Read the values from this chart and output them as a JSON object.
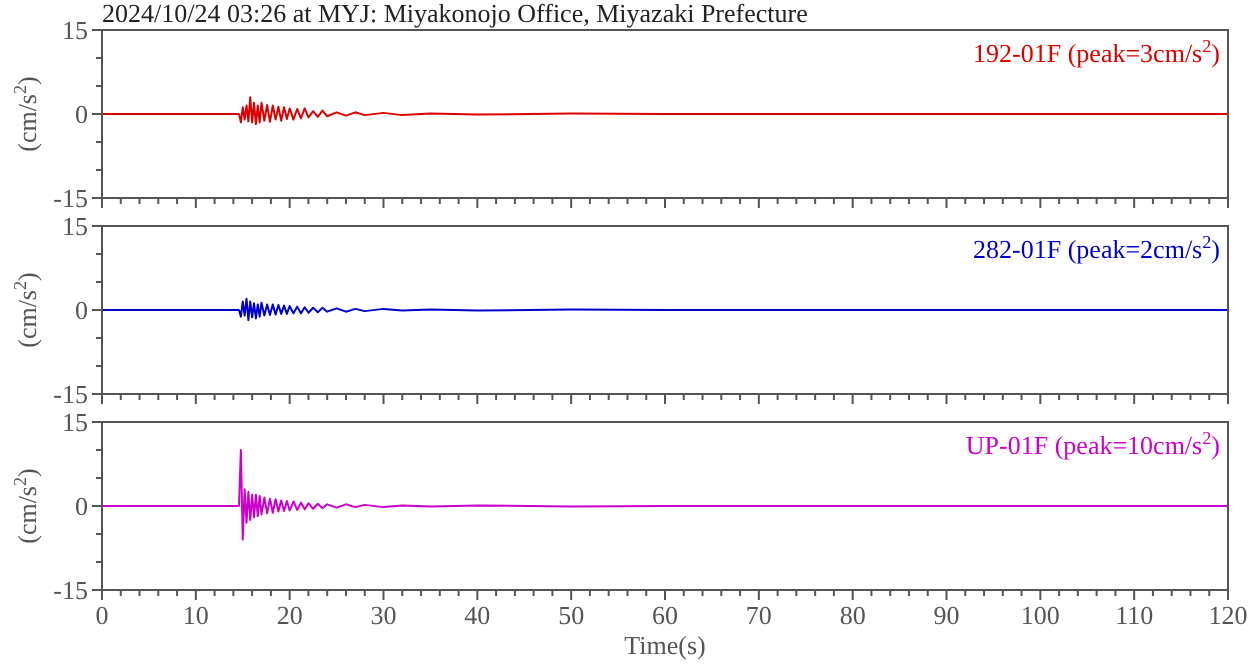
{
  "chart_data": [
    {
      "type": "line",
      "title": "2024/10/24 03:26 at MYJ: Miyakonojo Office, Miyazaki Prefecture",
      "ylabel": "(cm/s$^{2}$)",
      "annotations": [
        "192-01F (peak=3cm/s$^{2}$)"
      ],
      "tick_labels": "y",
      "grid": false,
      "xlim": [
        0,
        120
      ],
      "ylim": [
        -15,
        15
      ],
      "xticks": [
        0,
        10,
        20,
        30,
        40,
        50,
        60,
        70,
        80,
        90,
        100,
        110,
        120,
        {
          "value": 2,
          "label": null
        },
        {
          "value": 4,
          "label": null
        },
        {
          "value": 6,
          "label": null
        },
        {
          "value": 8,
          "label": null
        },
        {
          "value": 12,
          "label": null
        },
        {
          "value": 14,
          "label": null
        },
        {
          "value": 16,
          "label": null
        },
        {
          "value": 18,
          "label": null
        },
        {
          "value": 22,
          "label": null
        },
        {
          "value": 24,
          "label": null
        },
        {
          "value": 26,
          "label": null
        },
        {
          "value": 28,
          "label": null
        },
        {
          "value": 32,
          "label": null
        },
        {
          "value": 34,
          "label": null
        },
        {
          "value": 36,
          "label": null
        },
        {
          "value": 38,
          "label": null
        },
        {
          "value": 42,
          "label": null
        },
        {
          "value": 44,
          "label": null
        },
        {
          "value": 46,
          "label": null
        },
        {
          "value": 48,
          "label": null
        },
        {
          "value": 52,
          "label": null
        },
        {
          "value": 54,
          "label": null
        },
        {
          "value": 56,
          "label": null
        },
        {
          "value": 58,
          "label": null
        },
        {
          "value": 62,
          "label": null
        },
        {
          "value": 64,
          "label": null
        },
        {
          "value": 66,
          "label": null
        },
        {
          "value": 68,
          "label": null
        },
        {
          "value": 72,
          "label": null
        },
        {
          "value": 74,
          "label": null
        },
        {
          "value": 76,
          "label": null
        },
        {
          "value": 78,
          "label": null
        },
        {
          "value": 82,
          "label": null
        },
        {
          "value": 84,
          "label": null
        },
        {
          "value": 86,
          "label": null
        },
        {
          "value": 88,
          "label": null
        },
        {
          "value": 92,
          "label": null
        },
        {
          "value": 94,
          "label": null
        },
        {
          "value": 96,
          "label": null
        },
        {
          "value": 98,
          "label": null
        },
        {
          "value": 102,
          "label": null
        },
        {
          "value": 104,
          "label": null
        },
        {
          "value": 106,
          "label": null
        },
        {
          "value": 108,
          "label": null
        },
        {
          "value": 112,
          "label": null
        },
        {
          "value": 114,
          "label": null
        },
        {
          "value": 116,
          "label": null
        },
        {
          "value": 118,
          "label": null
        }
      ],
      "yticks": [
        -15,
        {
          "value": -10,
          "label": null
        },
        {
          "value": -5,
          "label": null
        },
        0,
        {
          "value": 5,
          "label": null
        },
        {
          "value": 10,
          "label": null
        },
        15
      ],
      "x": [
        0,
        14.6,
        14.8,
        15.0,
        15.2,
        15.4,
        15.6,
        15.8,
        16.0,
        16.2,
        16.4,
        16.6,
        16.8,
        17.0,
        17.3,
        17.6,
        17.9,
        18.2,
        18.5,
        18.8,
        19.1,
        19.4,
        19.7,
        20.0,
        20.4,
        20.8,
        21.2,
        21.6,
        22.0,
        22.5,
        23.0,
        23.5,
        24.0,
        25,
        26,
        27,
        28,
        30,
        32,
        35,
        40,
        50,
        60,
        120
      ],
      "series": [
        {
          "color": "#dd0000",
          "values": [
            0,
            0,
            -1.5,
            1.2,
            -1.0,
            1.5,
            -1.3,
            3,
            -1.5,
            2,
            -1.8,
            1.5,
            -1.5,
            2,
            -1.2,
            1.6,
            -1.4,
            1.5,
            -1.0,
            1.3,
            -1.2,
            1.2,
            -0.9,
            1.0,
            -1.0,
            0.9,
            -0.8,
            1.0,
            -0.6,
            0.5,
            -0.5,
            0.6,
            -0.4,
            0.3,
            -0.3,
            0.3,
            -0.2,
            0.2,
            -0.2,
            0.1,
            -0.1,
            0.1,
            0,
            0
          ]
        }
      ]
    },
    {
      "type": "line",
      "ylabel": "(cm/s$^{2}$)",
      "annotations": [
        "282-01F (peak=2cm/s$^{2}$)"
      ],
      "tick_labels": "y",
      "grid": false,
      "xlim": [
        0,
        120
      ],
      "ylim": [
        -15,
        15
      ],
      "xticks": [
        0,
        10,
        20,
        30,
        40,
        50,
        60,
        70,
        80,
        90,
        100,
        110,
        120,
        {
          "value": 2,
          "label": null
        },
        {
          "value": 4,
          "label": null
        },
        {
          "value": 6,
          "label": null
        },
        {
          "value": 8,
          "label": null
        },
        {
          "value": 12,
          "label": null
        },
        {
          "value": 14,
          "label": null
        },
        {
          "value": 16,
          "label": null
        },
        {
          "value": 18,
          "label": null
        },
        {
          "value": 22,
          "label": null
        },
        {
          "value": 24,
          "label": null
        },
        {
          "value": 26,
          "label": null
        },
        {
          "value": 28,
          "label": null
        },
        {
          "value": 32,
          "label": null
        },
        {
          "value": 34,
          "label": null
        },
        {
          "value": 36,
          "label": null
        },
        {
          "value": 38,
          "label": null
        },
        {
          "value": 42,
          "label": null
        },
        {
          "value": 44,
          "label": null
        },
        {
          "value": 46,
          "label": null
        },
        {
          "value": 48,
          "label": null
        },
        {
          "value": 52,
          "label": null
        },
        {
          "value": 54,
          "label": null
        },
        {
          "value": 56,
          "label": null
        },
        {
          "value": 58,
          "label": null
        },
        {
          "value": 62,
          "label": null
        },
        {
          "value": 64,
          "label": null
        },
        {
          "value": 66,
          "label": null
        },
        {
          "value": 68,
          "label": null
        },
        {
          "value": 72,
          "label": null
        },
        {
          "value": 74,
          "label": null
        },
        {
          "value": 76,
          "label": null
        },
        {
          "value": 78,
          "label": null
        },
        {
          "value": 82,
          "label": null
        },
        {
          "value": 84,
          "label": null
        },
        {
          "value": 86,
          "label": null
        },
        {
          "value": 88,
          "label": null
        },
        {
          "value": 92,
          "label": null
        },
        {
          "value": 94,
          "label": null
        },
        {
          "value": 96,
          "label": null
        },
        {
          "value": 98,
          "label": null
        },
        {
          "value": 102,
          "label": null
        },
        {
          "value": 104,
          "label": null
        },
        {
          "value": 106,
          "label": null
        },
        {
          "value": 108,
          "label": null
        },
        {
          "value": 112,
          "label": null
        },
        {
          "value": 114,
          "label": null
        },
        {
          "value": 116,
          "label": null
        },
        {
          "value": 118,
          "label": null
        }
      ],
      "yticks": [
        -15,
        {
          "value": -10,
          "label": null
        },
        {
          "value": -5,
          "label": null
        },
        0,
        {
          "value": 5,
          "label": null
        },
        {
          "value": 10,
          "label": null
        },
        15
      ],
      "x": [
        0,
        14.6,
        14.8,
        15.0,
        15.2,
        15.4,
        15.6,
        15.8,
        16.0,
        16.2,
        16.4,
        16.6,
        16.8,
        17.0,
        17.3,
        17.6,
        17.9,
        18.2,
        18.5,
        18.8,
        19.1,
        19.4,
        19.7,
        20.0,
        20.4,
        20.8,
        21.2,
        21.6,
        22.0,
        22.5,
        23.0,
        23.5,
        24.0,
        25,
        26,
        27,
        28,
        30,
        32,
        35,
        40,
        50,
        60,
        120
      ],
      "series": [
        {
          "color": "#0000cc",
          "values": [
            0,
            0,
            -1.2,
            1.5,
            -1.0,
            2,
            -1.8,
            1.5,
            -1.3,
            1.2,
            -1.5,
            1.0,
            -1.2,
            1.3,
            -1.0,
            1.0,
            -0.9,
            1.0,
            -0.8,
            0.9,
            -0.7,
            0.8,
            -0.7,
            0.7,
            -0.6,
            0.6,
            -0.6,
            0.5,
            -0.5,
            0.4,
            -0.4,
            0.4,
            -0.3,
            0.3,
            -0.3,
            0.2,
            -0.2,
            0.2,
            -0.1,
            0.1,
            -0.1,
            0.1,
            0,
            0
          ]
        }
      ]
    },
    {
      "type": "line",
      "ylabel": "(cm/s$^{2}$)",
      "xlabel": "Time(s)",
      "annotations": [
        "UP-01F (peak=10cm/s$^{2}$)"
      ],
      "grid": false,
      "xlim": [
        0,
        120
      ],
      "ylim": [
        -15,
        15
      ],
      "xticks": [
        0,
        10,
        20,
        30,
        40,
        50,
        60,
        70,
        80,
        90,
        100,
        110,
        120,
        {
          "value": 2,
          "label": null
        },
        {
          "value": 4,
          "label": null
        },
        {
          "value": 6,
          "label": null
        },
        {
          "value": 8,
          "label": null
        },
        {
          "value": 12,
          "label": null
        },
        {
          "value": 14,
          "label": null
        },
        {
          "value": 16,
          "label": null
        },
        {
          "value": 18,
          "label": null
        },
        {
          "value": 22,
          "label": null
        },
        {
          "value": 24,
          "label": null
        },
        {
          "value": 26,
          "label": null
        },
        {
          "value": 28,
          "label": null
        },
        {
          "value": 32,
          "label": null
        },
        {
          "value": 34,
          "label": null
        },
        {
          "value": 36,
          "label": null
        },
        {
          "value": 38,
          "label": null
        },
        {
          "value": 42,
          "label": null
        },
        {
          "value": 44,
          "label": null
        },
        {
          "value": 46,
          "label": null
        },
        {
          "value": 48,
          "label": null
        },
        {
          "value": 52,
          "label": null
        },
        {
          "value": 54,
          "label": null
        },
        {
          "value": 56,
          "label": null
        },
        {
          "value": 58,
          "label": null
        },
        {
          "value": 62,
          "label": null
        },
        {
          "value": 64,
          "label": null
        },
        {
          "value": 66,
          "label": null
        },
        {
          "value": 68,
          "label": null
        },
        {
          "value": 72,
          "label": null
        },
        {
          "value": 74,
          "label": null
        },
        {
          "value": 76,
          "label": null
        },
        {
          "value": 78,
          "label": null
        },
        {
          "value": 82,
          "label": null
        },
        {
          "value": 84,
          "label": null
        },
        {
          "value": 86,
          "label": null
        },
        {
          "value": 88,
          "label": null
        },
        {
          "value": 92,
          "label": null
        },
        {
          "value": 94,
          "label": null
        },
        {
          "value": 96,
          "label": null
        },
        {
          "value": 98,
          "label": null
        },
        {
          "value": 102,
          "label": null
        },
        {
          "value": 104,
          "label": null
        },
        {
          "value": 106,
          "label": null
        },
        {
          "value": 108,
          "label": null
        },
        {
          "value": 112,
          "label": null
        },
        {
          "value": 114,
          "label": null
        },
        {
          "value": 116,
          "label": null
        },
        {
          "value": 118,
          "label": null
        }
      ],
      "yticks": [
        -15,
        {
          "value": -10,
          "label": null
        },
        {
          "value": -5,
          "label": null
        },
        0,
        {
          "value": 5,
          "label": null
        },
        {
          "value": 10,
          "label": null
        },
        15
      ],
      "x": [
        0,
        14.6,
        14.8,
        15.0,
        15.2,
        15.4,
        15.6,
        15.8,
        16.0,
        16.2,
        16.4,
        16.6,
        16.8,
        17.0,
        17.3,
        17.6,
        17.9,
        18.2,
        18.5,
        18.8,
        19.1,
        19.4,
        19.7,
        20.0,
        20.4,
        20.8,
        21.2,
        21.6,
        22.0,
        22.5,
        23.0,
        23.5,
        24.0,
        25,
        26,
        27,
        28,
        30,
        32,
        35,
        40,
        50,
        60,
        120
      ],
      "series": [
        {
          "color": "#cc00cc",
          "values": [
            0,
            0,
            10,
            -6,
            3,
            -3,
            2.5,
            -2.5,
            2,
            -2,
            2,
            -1.8,
            1.8,
            -1.5,
            1.5,
            -1.3,
            1.3,
            -1.2,
            1.2,
            -1.0,
            1.0,
            -0.9,
            0.9,
            -0.8,
            0.8,
            -0.7,
            0.6,
            -0.6,
            0.5,
            -0.5,
            0.4,
            -0.4,
            0.3,
            -0.3,
            0.3,
            -0.2,
            0.2,
            -0.2,
            0.1,
            -0.1,
            0.1,
            -0.1,
            0,
            0
          ]
        }
      ]
    }
  ]
}
